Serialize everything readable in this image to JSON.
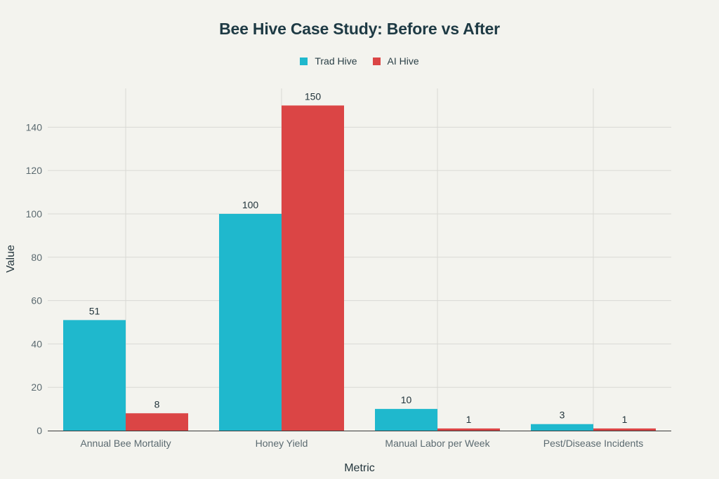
{
  "chart_data": {
    "type": "bar",
    "title": "Bee Hive Case Study: Before vs After",
    "xlabel": "Metric",
    "ylabel": "Value",
    "categories": [
      "Annual Bee Mortality",
      "Honey Yield",
      "Manual Labor per Week",
      "Pest/Disease Incidents"
    ],
    "series": [
      {
        "name": "Trad Hive",
        "color": "#1fb8cd",
        "values": [
          51,
          100,
          10,
          3
        ]
      },
      {
        "name": "AI Hive",
        "color": "#db4545",
        "values": [
          8,
          150,
          1,
          1
        ]
      }
    ],
    "ylim": [
      0,
      157.9
    ],
    "yticks": [
      0,
      20,
      40,
      60,
      80,
      100,
      120,
      140
    ],
    "grid": true,
    "legend_position": "top-center",
    "show_data_labels": true
  }
}
